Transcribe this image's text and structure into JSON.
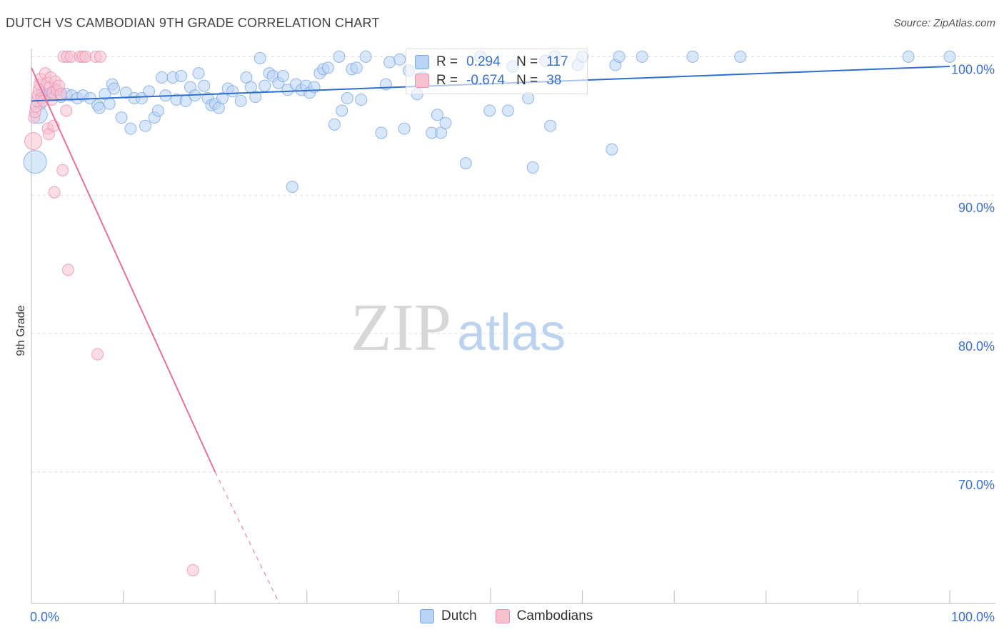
{
  "header": {
    "title": "DUTCH VS CAMBODIAN 9TH GRADE CORRELATION CHART",
    "source": "Source: ZipAtlas.com"
  },
  "legend": {
    "r_label": "R =",
    "n_label": "N =",
    "rows": [
      {
        "r": "0.294",
        "n": "117"
      },
      {
        "r": "-0.674",
        "n": "38"
      }
    ],
    "bottom": [
      "Dutch",
      "Cambodians"
    ]
  },
  "watermark": {
    "zip": "ZIP",
    "atlas": "atlas"
  },
  "colors": {
    "dutch_fill": "#b9d3f5",
    "dutch_stroke": "#7aa6e6",
    "dutch_line": "#2f6fcf",
    "cambodian_fill": "#f8c1d2",
    "cambodian_stroke": "#ec8fae",
    "cambodian_line": "#e2739b",
    "tick_label": "#3a6fd0",
    "grid": "#dcdcdc"
  },
  "chart_data": {
    "type": "scatter",
    "title": "DUTCH VS CAMBODIAN 9TH GRADE CORRELATION CHART",
    "xlabel": "",
    "ylabel": "9th Grade",
    "xlim": [
      0,
      100
    ],
    "ylim": [
      60.5,
      101.0
    ],
    "x_tick_labels": [
      {
        "v": 0,
        "label": "0.0%"
      },
      {
        "v": 100,
        "label": "100.0%"
      }
    ],
    "y_tick_labels": [
      {
        "v": 100,
        "label": "100.0%"
      },
      {
        "v": 90,
        "label": "90.0%"
      },
      {
        "v": 80,
        "label": "80.0%"
      },
      {
        "v": 70,
        "label": "70.0%"
      }
    ],
    "x_minor_ticks": [
      0,
      10,
      20,
      30,
      40,
      50,
      60,
      70,
      80,
      90,
      100
    ],
    "grid": true,
    "series": [
      {
        "name": "Dutch",
        "r": 0.294,
        "n": 117,
        "trend": {
          "x": [
            0,
            100
          ],
          "y": [
            96.8,
            99.3
          ]
        },
        "points": [
          [
            0.4,
            92.4,
            3
          ],
          [
            0.8,
            95.8,
            2
          ],
          [
            1.0,
            96.6,
            1
          ],
          [
            1.2,
            97.4,
            1
          ],
          [
            1.6,
            97.2,
            1
          ],
          [
            2.0,
            97.4,
            1
          ],
          [
            2.6,
            97.6,
            1
          ],
          [
            3.2,
            97.1,
            1
          ],
          [
            3.8,
            97.3,
            1
          ],
          [
            4.4,
            97.2,
            1
          ],
          [
            5.0,
            97.0,
            1
          ],
          [
            5.6,
            97.2,
            1
          ],
          [
            6.4,
            97.0,
            1
          ],
          [
            7.2,
            96.5,
            1
          ],
          [
            7.4,
            96.3,
            1
          ],
          [
            8.0,
            97.3,
            1
          ],
          [
            8.5,
            96.6,
            1
          ],
          [
            8.8,
            98.0,
            1
          ],
          [
            9.0,
            97.7,
            1
          ],
          [
            9.8,
            95.6,
            1
          ],
          [
            10.3,
            97.4,
            1
          ],
          [
            10.8,
            94.8,
            1
          ],
          [
            11.2,
            97.0,
            1
          ],
          [
            12.0,
            97.0,
            1
          ],
          [
            12.4,
            95.0,
            1
          ],
          [
            12.8,
            97.5,
            1
          ],
          [
            13.4,
            95.6,
            1
          ],
          [
            13.8,
            96.1,
            1
          ],
          [
            14.2,
            98.5,
            1
          ],
          [
            14.6,
            97.2,
            1
          ],
          [
            15.4,
            98.5,
            1
          ],
          [
            15.8,
            96.9,
            1
          ],
          [
            16.3,
            98.6,
            1
          ],
          [
            16.8,
            96.8,
            1
          ],
          [
            17.3,
            97.8,
            1
          ],
          [
            17.8,
            97.2,
            1
          ],
          [
            18.2,
            98.8,
            1
          ],
          [
            18.8,
            97.9,
            1
          ],
          [
            19.2,
            97.0,
            1
          ],
          [
            19.6,
            96.5,
            1
          ],
          [
            20.0,
            96.6,
            1
          ],
          [
            20.4,
            96.3,
            1
          ],
          [
            20.8,
            97.0,
            1
          ],
          [
            21.4,
            97.7,
            1
          ],
          [
            21.9,
            97.5,
            1
          ],
          [
            22.8,
            96.8,
            1
          ],
          [
            23.4,
            98.5,
            1
          ],
          [
            23.9,
            97.8,
            1
          ],
          [
            24.4,
            97.1,
            1
          ],
          [
            24.9,
            99.9,
            1
          ],
          [
            25.4,
            97.9,
            1
          ],
          [
            25.9,
            98.8,
            1
          ],
          [
            26.3,
            98.6,
            1
          ],
          [
            26.9,
            98.1,
            1
          ],
          [
            27.4,
            98.6,
            1
          ],
          [
            27.9,
            97.6,
            1
          ],
          [
            28.4,
            90.6,
            1
          ],
          [
            28.8,
            98.0,
            1
          ],
          [
            29.4,
            97.6,
            1
          ],
          [
            29.9,
            97.9,
            1
          ],
          [
            30.3,
            97.4,
            1
          ],
          [
            30.8,
            97.8,
            1
          ],
          [
            31.4,
            98.8,
            1
          ],
          [
            31.8,
            99.1,
            1
          ],
          [
            32.3,
            99.2,
            1
          ],
          [
            33.0,
            95.1,
            1
          ],
          [
            33.5,
            100.0,
            1
          ],
          [
            33.8,
            96.1,
            1
          ],
          [
            34.4,
            97.0,
            1
          ],
          [
            34.9,
            99.1,
            1
          ],
          [
            35.4,
            99.2,
            1
          ],
          [
            35.9,
            96.9,
            1
          ],
          [
            36.4,
            100.0,
            1
          ],
          [
            38.1,
            94.5,
            1
          ],
          [
            38.6,
            98.0,
            1
          ],
          [
            39.0,
            99.6,
            1
          ],
          [
            40.1,
            99.8,
            1
          ],
          [
            40.6,
            94.8,
            1
          ],
          [
            41.1,
            99.0,
            1
          ],
          [
            42.0,
            97.3,
            1
          ],
          [
            42.6,
            98.5,
            1
          ],
          [
            43.6,
            94.5,
            1
          ],
          [
            44.2,
            95.8,
            1
          ],
          [
            44.6,
            94.5,
            1
          ],
          [
            45.1,
            95.2,
            1
          ],
          [
            47.3,
            92.3,
            1
          ],
          [
            48.9,
            100.0,
            1
          ],
          [
            49.9,
            96.1,
            1
          ],
          [
            51.9,
            96.1,
            1
          ],
          [
            52.4,
            99.3,
            1
          ],
          [
            54.1,
            97.0,
            1
          ],
          [
            54.6,
            92.0,
            1
          ],
          [
            56.0,
            99.7,
            1
          ],
          [
            56.5,
            95.0,
            1
          ],
          [
            57.0,
            100.0,
            1
          ],
          [
            59.5,
            99.4,
            1
          ],
          [
            60.0,
            100.0,
            1
          ],
          [
            63.2,
            93.3,
            1
          ],
          [
            63.6,
            99.4,
            1
          ],
          [
            64.0,
            100.0,
            1
          ],
          [
            66.5,
            100.0,
            1
          ],
          [
            72.0,
            100.0,
            1
          ],
          [
            77.2,
            100.0,
            1
          ],
          [
            95.5,
            100.0,
            1
          ],
          [
            100.0,
            100.0,
            1
          ]
        ]
      },
      {
        "name": "Cambodians",
        "r": -0.674,
        "n": 38,
        "trend": {
          "x": [
            0,
            20
          ],
          "y": [
            99.2,
            70.0
          ],
          "dashed_extension": {
            "x": [
              20,
              27
            ],
            "y": [
              70.0,
              60.5
            ]
          }
        },
        "points": [
          [
            0.2,
            93.9,
            2
          ],
          [
            0.3,
            95.6,
            1
          ],
          [
            0.4,
            96.0,
            1
          ],
          [
            0.5,
            96.4,
            1
          ],
          [
            0.6,
            96.8,
            1
          ],
          [
            0.7,
            97.2,
            1
          ],
          [
            0.8,
            97.6,
            1
          ],
          [
            0.9,
            98.0,
            1
          ],
          [
            1.0,
            98.4,
            1
          ],
          [
            1.1,
            97.0,
            1
          ],
          [
            1.3,
            96.8,
            1
          ],
          [
            1.5,
            98.8,
            1
          ],
          [
            1.7,
            98.1,
            1
          ],
          [
            1.8,
            94.8,
            1
          ],
          [
            1.9,
            94.4,
            1
          ],
          [
            2.0,
            97.8,
            1
          ],
          [
            2.1,
            98.5,
            1
          ],
          [
            2.2,
            96.9,
            1
          ],
          [
            2.3,
            97.4,
            1
          ],
          [
            2.4,
            95.0,
            1
          ],
          [
            2.6,
            98.2,
            1
          ],
          [
            2.8,
            97.6,
            1
          ],
          [
            3.0,
            97.9,
            1
          ],
          [
            3.2,
            97.3,
            1
          ],
          [
            2.5,
            90.2,
            1
          ],
          [
            3.4,
            91.8,
            1
          ],
          [
            3.8,
            96.1,
            1
          ],
          [
            4.0,
            84.6,
            1
          ],
          [
            3.5,
            100.0,
            1
          ],
          [
            3.9,
            100.0,
            1
          ],
          [
            4.3,
            100.0,
            1
          ],
          [
            5.3,
            100.0,
            1
          ],
          [
            5.6,
            100.0,
            1
          ],
          [
            5.9,
            100.0,
            1
          ],
          [
            7.0,
            100.0,
            1
          ],
          [
            7.5,
            100.0,
            1
          ],
          [
            7.2,
            78.5,
            1
          ],
          [
            17.6,
            62.9,
            1
          ]
        ]
      }
    ]
  }
}
